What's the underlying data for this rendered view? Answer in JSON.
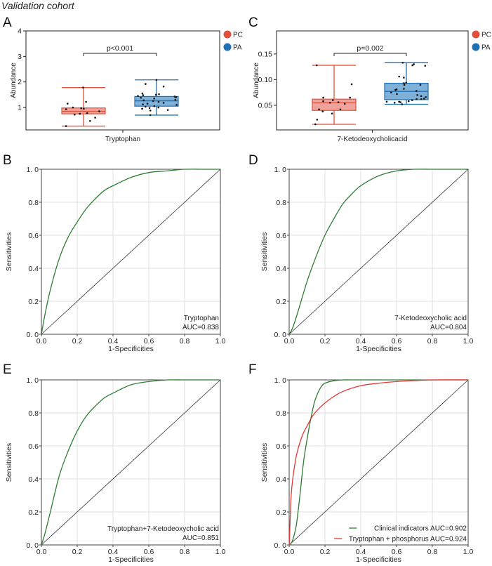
{
  "figure_title": "Validation cohort",
  "colors": {
    "PC": "#e0503c",
    "PA": "#1f6fb3",
    "PC_fill": "#f0a39a",
    "PA_fill": "#7fb0d8",
    "roc_green": "#2e7d32",
    "roc_red": "#e53935",
    "diagonal": "#333333",
    "grid": "#e0e0e0"
  },
  "chart_data": [
    {
      "panel": "A",
      "type": "box",
      "title": "",
      "xlabel": "Tryptophan",
      "ylabel": "Abundance",
      "ylim": [
        0.12,
        4.0
      ],
      "yticks": [
        1,
        2,
        3,
        4
      ],
      "ytick_labels": [
        "1",
        "2",
        "3",
        "4"
      ],
      "legend": [
        "PC",
        "PA"
      ],
      "legend_position": "outside-top-right",
      "annotation": "p<0.001",
      "groups": [
        {
          "name": "PC",
          "whisker_low": 0.27,
          "q1": 0.75,
          "median": 0.85,
          "q3": 0.98,
          "whisker_high": 1.78,
          "points": [
            1.78,
            1.22,
            1.15,
            1.0,
            0.97,
            0.95,
            0.93,
            0.85,
            0.78,
            0.75,
            0.72,
            0.6,
            0.47,
            0.27
          ]
        },
        {
          "name": "PA",
          "whisker_low": 0.7,
          "q1": 1.05,
          "median": 1.26,
          "q3": 1.43,
          "whisker_high": 2.08,
          "points": [
            2.08,
            1.92,
            1.82,
            1.55,
            1.52,
            1.5,
            1.48,
            1.45,
            1.43,
            1.4,
            1.38,
            1.35,
            1.3,
            1.28,
            1.25,
            1.22,
            1.18,
            1.15,
            1.12,
            1.1,
            1.05,
            1.03,
            1.0,
            0.98,
            0.95,
            0.9,
            0.88,
            0.7
          ]
        }
      ]
    },
    {
      "panel": "C",
      "type": "box",
      "title": "",
      "xlabel": "7-Ketodeoxycholicacid",
      "ylabel": "Abundance",
      "ylim": [
        0.002,
        0.195
      ],
      "yticks": [
        0.05,
        0.1,
        0.15
      ],
      "ytick_labels": [
        "0.05",
        "0.10",
        "0.15"
      ],
      "legend": [
        "PC",
        "PA"
      ],
      "legend_position": "outside-top-right",
      "annotation": "p=0.002",
      "groups": [
        {
          "name": "PC",
          "whisker_low": 0.013,
          "q1": 0.04,
          "median": 0.055,
          "q3": 0.062,
          "whisker_high": 0.128,
          "points": [
            0.128,
            0.091,
            0.065,
            0.065,
            0.06,
            0.058,
            0.056,
            0.055,
            0.053,
            0.042,
            0.042,
            0.038,
            0.034,
            0.022,
            0.013
          ]
        },
        {
          "name": "PA",
          "whisker_low": 0.052,
          "q1": 0.061,
          "median": 0.077,
          "q3": 0.093,
          "whisker_high": 0.133,
          "points": [
            0.133,
            0.13,
            0.128,
            0.127,
            0.106,
            0.104,
            0.094,
            0.093,
            0.09,
            0.09,
            0.082,
            0.081,
            0.08,
            0.078,
            0.075,
            0.072,
            0.07,
            0.068,
            0.066,
            0.063,
            0.062,
            0.062,
            0.06,
            0.058,
            0.057,
            0.057,
            0.056,
            0.055,
            0.052
          ]
        }
      ]
    },
    {
      "panel": "B",
      "type": "line",
      "xlabel": "1-Specificities",
      "ylabel": "Sensitivities",
      "xlim": [
        0,
        1
      ],
      "ylim": [
        0,
        1
      ],
      "xticks": [
        "0.0",
        "0.2",
        "0.4",
        "0.6",
        "0.8",
        "1.0"
      ],
      "yticks": [
        "0.0",
        "0.2",
        "0.4",
        "0.6",
        "0.8",
        "1.0"
      ],
      "grid": true,
      "annotation": [
        "Tryptophan",
        "AUC=0.838"
      ],
      "legend_position": "bottom-right",
      "series": [
        {
          "name": "Tryptophan",
          "color_key": "roc_green",
          "auc": 0.838,
          "x": [
            0,
            0.02,
            0.05,
            0.1,
            0.15,
            0.2,
            0.25,
            0.3,
            0.35,
            0.4,
            0.5,
            0.6,
            0.7,
            0.8,
            0.9,
            1.0
          ],
          "y": [
            0,
            0.12,
            0.27,
            0.46,
            0.59,
            0.68,
            0.76,
            0.82,
            0.87,
            0.9,
            0.95,
            0.98,
            0.99,
            1.0,
            1.0,
            1.0
          ]
        }
      ]
    },
    {
      "panel": "D",
      "type": "line",
      "xlabel": "1-Specificities",
      "ylabel": "Sensitivities",
      "xlim": [
        0,
        1
      ],
      "ylim": [
        0,
        1
      ],
      "xticks": [
        "0.0",
        "0.2",
        "0.4",
        "0.6",
        "0.8",
        "1.0"
      ],
      "yticks": [
        "0.0",
        "0.2",
        "0.4",
        "0.6",
        "0.8",
        "1.0"
      ],
      "grid": true,
      "annotation": [
        "7-Ketodeoxycholic acid",
        "AUC=0.804"
      ],
      "legend_position": "bottom-right",
      "series": [
        {
          "name": "7-Ketodeoxycholic acid",
          "color_key": "roc_green",
          "auc": 0.804,
          "x": [
            0,
            0.02,
            0.05,
            0.1,
            0.15,
            0.2,
            0.25,
            0.3,
            0.35,
            0.4,
            0.5,
            0.6,
            0.7,
            0.8,
            0.9,
            1.0
          ],
          "y": [
            0,
            0.04,
            0.14,
            0.32,
            0.47,
            0.6,
            0.7,
            0.79,
            0.85,
            0.9,
            0.96,
            0.99,
            1.0,
            1.0,
            1.0,
            1.0
          ]
        }
      ]
    },
    {
      "panel": "E",
      "type": "line",
      "xlabel": "1-Specificities",
      "ylabel": "Sensitivities",
      "xlim": [
        0,
        1
      ],
      "ylim": [
        0,
        1
      ],
      "xticks": [
        "0.0",
        "0.2",
        "0.4",
        "0.6",
        "0.8",
        "1.0"
      ],
      "yticks": [
        "0.0",
        "0.2",
        "0.4",
        "0.6",
        "0.8",
        "1.0"
      ],
      "grid": true,
      "annotation": [
        "Tryptophan+7-Ketodeoxycholic acid",
        "AUC=0.851"
      ],
      "legend_position": "bottom-right",
      "series": [
        {
          "name": "Tryptophan+7-Ketodeoxycholic acid",
          "color_key": "roc_green",
          "auc": 0.851,
          "x": [
            0,
            0.02,
            0.05,
            0.1,
            0.15,
            0.2,
            0.25,
            0.3,
            0.35,
            0.4,
            0.5,
            0.6,
            0.7,
            0.8,
            0.9,
            1.0
          ],
          "y": [
            0,
            0.07,
            0.2,
            0.42,
            0.57,
            0.69,
            0.78,
            0.84,
            0.89,
            0.92,
            0.97,
            0.99,
            1.0,
            1.0,
            1.0,
            1.0
          ]
        }
      ]
    },
    {
      "panel": "F",
      "type": "line",
      "xlabel": "1-Specificities",
      "ylabel": "Sensitivities",
      "xlim": [
        0,
        1
      ],
      "ylim": [
        0,
        1
      ],
      "xticks": [
        "0.0",
        "0.2",
        "0.4",
        "0.6",
        "0.8",
        "1.0"
      ],
      "yticks": [
        "0.0",
        "0.2",
        "0.4",
        "0.6",
        "0.8",
        "1.0"
      ],
      "grid": true,
      "legend_position": "bottom-right",
      "series": [
        {
          "name": "Clinical indicators AUC=0.902",
          "color_key": "roc_green",
          "auc": 0.902,
          "x": [
            0,
            0.01,
            0.02,
            0.04,
            0.06,
            0.08,
            0.1,
            0.12,
            0.14,
            0.16,
            0.18,
            0.2,
            0.25,
            0.3,
            0.35,
            0.5,
            1.0
          ],
          "y": [
            0,
            0.01,
            0.03,
            0.12,
            0.3,
            0.5,
            0.64,
            0.76,
            0.86,
            0.92,
            0.96,
            0.98,
            0.995,
            1.0,
            1.0,
            1.0,
            1.0
          ]
        },
        {
          "name": "Tryptophan + phosphorus AUC=0.924",
          "color_key": "roc_red",
          "auc": 0.924,
          "x": [
            0,
            0.002,
            0.01,
            0.02,
            0.04,
            0.06,
            0.08,
            0.1,
            0.13,
            0.16,
            0.2,
            0.25,
            0.3,
            0.4,
            0.5,
            0.6,
            0.8,
            1.0
          ],
          "y": [
            0,
            0.04,
            0.28,
            0.4,
            0.54,
            0.62,
            0.68,
            0.72,
            0.78,
            0.82,
            0.86,
            0.9,
            0.93,
            0.965,
            0.98,
            0.99,
            1.0,
            1.0
          ]
        }
      ]
    }
  ],
  "panel_labels": [
    "A",
    "B",
    "C",
    "D",
    "E",
    "F"
  ]
}
